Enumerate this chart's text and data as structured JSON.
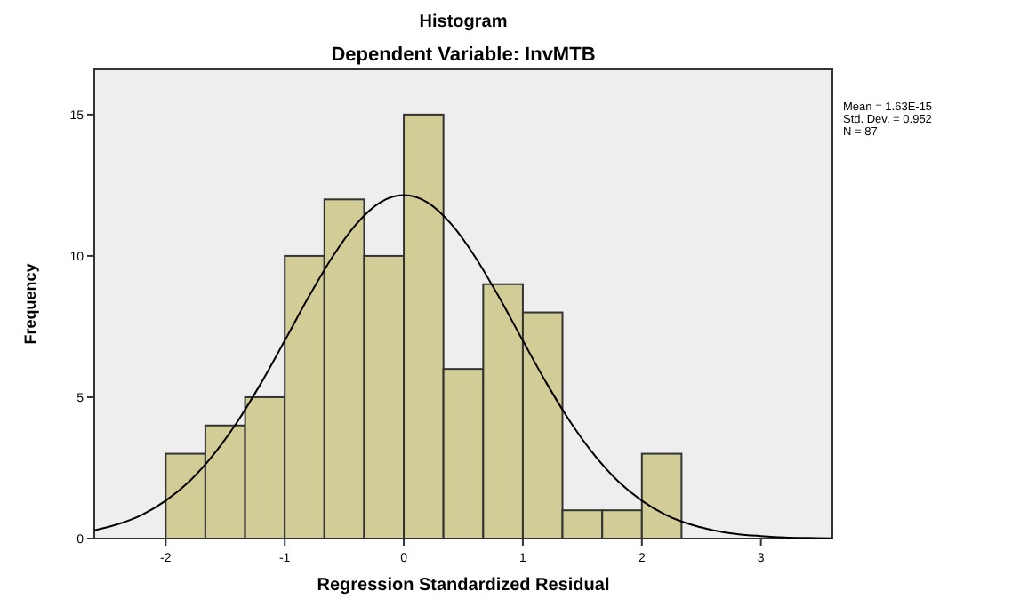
{
  "chart_data": {
    "type": "histogram",
    "title": "Histogram",
    "subtitle": "Dependent Variable: InvMTB",
    "xlabel": "Regression Standardized Residual",
    "ylabel": "Frequency",
    "bins": [
      -2,
      -1.667,
      -1.333,
      -1,
      -0.667,
      -0.333,
      0,
      0.333,
      0.667,
      1,
      1.333,
      1.667,
      2,
      2.333
    ],
    "values": [
      3,
      4,
      5,
      10,
      12,
      10,
      15,
      6,
      9,
      8,
      1,
      1,
      3
    ],
    "color": "#d2cd96",
    "series": [
      {
        "type": "line",
        "color": "#000000",
        "x": [
          -2.6,
          -2.4,
          -2.2,
          -2,
          -1.8,
          -1.6,
          -1.4,
          -1.2,
          -1,
          -0.8,
          -0.6,
          -0.4,
          -0.2,
          0,
          0.2,
          0.4,
          0.6,
          0.8,
          1,
          1.2,
          1.4,
          1.6,
          1.8,
          2,
          2.2,
          2.4,
          2.6,
          2.8,
          3,
          3.2,
          3.4,
          3.6
        ],
        "values": [
          0.29,
          0.51,
          0.84,
          1.34,
          2.03,
          2.96,
          4.12,
          5.49,
          7,
          8.54,
          9.96,
          11.12,
          11.89,
          12.15,
          11.89,
          11.12,
          9.96,
          8.54,
          7,
          5.49,
          4.12,
          2.96,
          2.03,
          1.34,
          0.84,
          0.51,
          0.29,
          0.16,
          0.09,
          0.04,
          0.02,
          0.01
        ]
      }
    ],
    "xlim": [
      -2.6,
      3.6
    ],
    "xticks": [
      -2,
      -1,
      0,
      1,
      2,
      3
    ],
    "ylim": [
      0,
      16.6
    ],
    "yticks": [
      0,
      5,
      10,
      15
    ],
    "grid": false,
    "annotations": [
      "Mean = 1.63E-15",
      "Std. Dev. = 0.952",
      "N = 87"
    ]
  }
}
